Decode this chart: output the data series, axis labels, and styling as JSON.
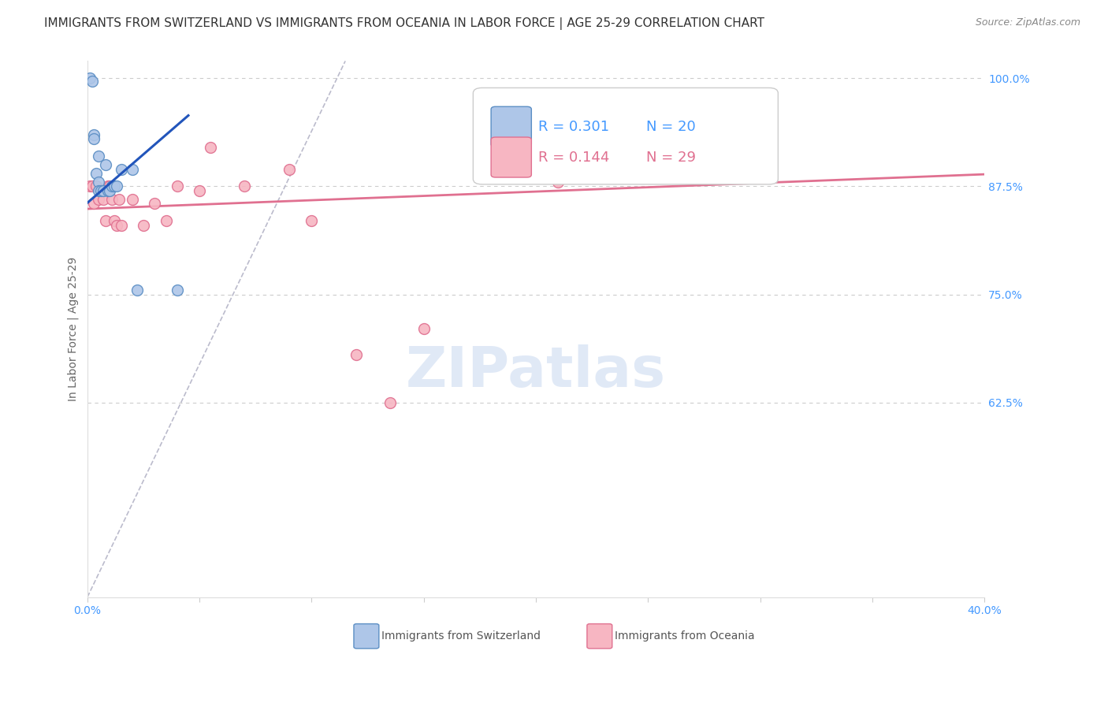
{
  "title": "IMMIGRANTS FROM SWITZERLAND VS IMMIGRANTS FROM OCEANIA IN LABOR FORCE | AGE 25-29 CORRELATION CHART",
  "source": "Source: ZipAtlas.com",
  "ylabel": "In Labor Force | Age 25-29",
  "xlim": [
    0.0,
    0.4
  ],
  "ylim": [
    0.4,
    1.02
  ],
  "xticks": [
    0.0,
    0.05,
    0.1,
    0.15,
    0.2,
    0.25,
    0.3,
    0.35,
    0.4
  ],
  "xticklabels": [
    "0.0%",
    "",
    "",
    "",
    "",
    "",
    "",
    "",
    "40.0%"
  ],
  "yticks_right": [
    0.625,
    0.75,
    0.875,
    1.0
  ],
  "ytick_labels_right": [
    "62.5%",
    "75.0%",
    "87.5%",
    "100.0%"
  ],
  "background_color": "#ffffff",
  "grid_color": "#cccccc",
  "switzerland_color": "#aec6e8",
  "switzerland_edge_color": "#5b8ec4",
  "oceania_color": "#f7b6c2",
  "oceania_edge_color": "#e07090",
  "line_blue": "#2255bb",
  "line_pink": "#e07090",
  "diag_color": "#bbbbcc",
  "legend_R_swiss": "R = 0.301",
  "legend_N_swiss": "N = 20",
  "legend_R_oceania": "R = 0.144",
  "legend_N_oceania": "N = 29",
  "switzerland_x": [
    0.001,
    0.002,
    0.003,
    0.003,
    0.004,
    0.005,
    0.005,
    0.005,
    0.006,
    0.007,
    0.008,
    0.009,
    0.01,
    0.011,
    0.012,
    0.013,
    0.015,
    0.02,
    0.022,
    0.04
  ],
  "switzerland_y": [
    1.0,
    0.997,
    0.935,
    0.93,
    0.89,
    0.91,
    0.88,
    0.87,
    0.87,
    0.87,
    0.9,
    0.87,
    0.87,
    0.875,
    0.875,
    0.875,
    0.895,
    0.895,
    0.755,
    0.755
  ],
  "oceania_x": [
    0.001,
    0.002,
    0.003,
    0.004,
    0.005,
    0.006,
    0.007,
    0.008,
    0.009,
    0.01,
    0.011,
    0.012,
    0.013,
    0.014,
    0.015,
    0.02,
    0.025,
    0.03,
    0.035,
    0.04,
    0.05,
    0.055,
    0.07,
    0.09,
    0.1,
    0.12,
    0.135,
    0.15,
    0.21
  ],
  "oceania_y": [
    0.875,
    0.875,
    0.855,
    0.875,
    0.86,
    0.87,
    0.86,
    0.835,
    0.875,
    0.875,
    0.86,
    0.835,
    0.83,
    0.86,
    0.83,
    0.86,
    0.83,
    0.855,
    0.835,
    0.875,
    0.87,
    0.92,
    0.875,
    0.895,
    0.835,
    0.68,
    0.625,
    0.71,
    0.88
  ],
  "sw_line_x": [
    0.0,
    0.045
  ],
  "sw_line_y": [
    0.856,
    0.957
  ],
  "oc_line_x": [
    0.0,
    0.4
  ],
  "oc_line_y": [
    0.849,
    0.889
  ],
  "diag_line_x": [
    0.0,
    0.115
  ],
  "diag_line_y": [
    0.4,
    1.02
  ],
  "marker_size": 100,
  "title_fontsize": 11,
  "axis_label_fontsize": 10,
  "tick_fontsize": 10,
  "legend_fontsize": 13,
  "watermark_text": "ZIPatlas",
  "watermark_color": "#c8d8f0"
}
